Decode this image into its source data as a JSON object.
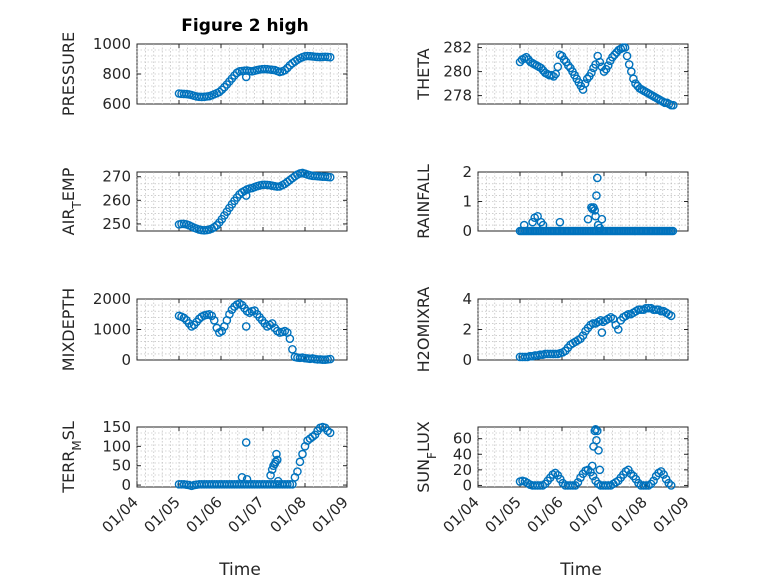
{
  "figure": {
    "title": "Figure 2 high",
    "marker_color": "#0072BD",
    "grid": "dotted",
    "x_tick_labels": [
      "01/04",
      "01/05",
      "01/06",
      "01/07",
      "01/08",
      "01/09"
    ],
    "x_label": "Time"
  },
  "chart_data": [
    {
      "type": "scatter",
      "ylabel": "PRESSURE",
      "ylim": [
        600,
        1000
      ],
      "yticks": [
        600,
        800,
        1000
      ],
      "x": [
        5.0,
        5.06,
        5.12,
        5.18,
        5.24,
        5.3,
        5.36,
        5.42,
        5.48,
        5.54,
        5.6,
        5.66,
        5.72,
        5.78,
        5.84,
        5.9,
        5.96,
        6.02,
        6.08,
        6.14,
        6.2,
        6.26,
        6.32,
        6.38,
        6.44,
        6.5,
        6.56,
        6.62,
        6.68,
        6.74,
        6.8,
        6.86,
        6.92,
        6.98,
        7.04,
        7.1,
        7.16,
        7.22,
        7.28,
        7.34,
        7.4,
        7.46,
        7.52,
        7.58,
        7.64,
        7.7,
        7.76,
        7.82,
        7.88,
        7.94,
        8.0,
        8.06,
        8.12,
        8.18,
        8.24,
        8.3,
        8.36,
        8.42,
        8.48,
        8.54,
        8.6,
        6.6
      ],
      "y": [
        670,
        668,
        667,
        666,
        664,
        660,
        655,
        650,
        648,
        647,
        648,
        650,
        652,
        658,
        665,
        672,
        680,
        695,
        712,
        730,
        750,
        770,
        790,
        808,
        818,
        820,
        822,
        823,
        820,
        818,
        822,
        826,
        830,
        832,
        833,
        832,
        830,
        828,
        826,
        820,
        814,
        818,
        825,
        840,
        858,
        872,
        884,
        895,
        905,
        912,
        918,
        920,
        919,
        917,
        915,
        914,
        913,
        914,
        915,
        914,
        912,
        780
      ]
    },
    {
      "type": "scatter",
      "ylabel": "THETA",
      "ylim": [
        277.3,
        282.3
      ],
      "yticks": [
        278,
        280,
        282
      ],
      "x": [
        5.0,
        5.05,
        5.1,
        5.15,
        5.2,
        5.25,
        5.3,
        5.35,
        5.4,
        5.45,
        5.5,
        5.55,
        5.6,
        5.65,
        5.7,
        5.75,
        5.8,
        5.85,
        5.9,
        5.95,
        6.0,
        6.05,
        6.1,
        6.15,
        6.2,
        6.25,
        6.3,
        6.35,
        6.4,
        6.45,
        6.5,
        6.55,
        6.6,
        6.65,
        6.7,
        6.75,
        6.8,
        6.85,
        6.9,
        6.95,
        7.0,
        7.05,
        7.1,
        7.15,
        7.2,
        7.25,
        7.3,
        7.35,
        7.4,
        7.45,
        7.5,
        7.55,
        7.6,
        7.65,
        7.7,
        7.75,
        7.8,
        7.85,
        7.9,
        7.95,
        8.0,
        8.05,
        8.1,
        8.15,
        8.2,
        8.25,
        8.3,
        8.35,
        8.4,
        8.45,
        8.5,
        8.55,
        8.6,
        8.65
      ],
      "y": [
        280.8,
        281.0,
        281.1,
        281.2,
        281.0,
        280.8,
        280.7,
        280.6,
        280.5,
        280.4,
        280.3,
        280.1,
        279.9,
        279.8,
        279.7,
        279.7,
        279.6,
        279.8,
        280.4,
        281.4,
        281.3,
        281.0,
        280.8,
        280.5,
        280.3,
        280.0,
        279.7,
        279.4,
        279.1,
        278.8,
        278.5,
        279.0,
        279.4,
        279.6,
        279.9,
        280.3,
        280.6,
        281.3,
        280.8,
        280.4,
        280.0,
        280.2,
        280.5,
        280.9,
        281.2,
        281.4,
        281.6,
        281.8,
        281.9,
        282.0,
        282.0,
        281.3,
        280.6,
        280.0,
        279.4,
        279.0,
        278.8,
        278.6,
        278.5,
        278.4,
        278.3,
        278.2,
        278.1,
        278.0,
        277.9,
        277.8,
        277.7,
        277.6,
        277.5,
        277.4,
        277.4,
        277.3,
        277.2,
        277.2
      ]
    },
    {
      "type": "scatter",
      "ylabel": "AIR_TEMP",
      "ylim": [
        247,
        272
      ],
      "yticks": [
        250,
        260,
        270
      ],
      "x": [
        5.0,
        5.06,
        5.12,
        5.18,
        5.24,
        5.3,
        5.36,
        5.42,
        5.48,
        5.54,
        5.6,
        5.66,
        5.72,
        5.78,
        5.84,
        5.9,
        5.96,
        6.02,
        6.08,
        6.14,
        6.2,
        6.26,
        6.32,
        6.38,
        6.44,
        6.5,
        6.56,
        6.62,
        6.68,
        6.74,
        6.8,
        6.86,
        6.92,
        6.98,
        7.04,
        7.1,
        7.16,
        7.22,
        7.28,
        7.34,
        7.4,
        7.46,
        7.52,
        7.58,
        7.64,
        7.7,
        7.76,
        7.82,
        7.88,
        7.94,
        8.0,
        8.06,
        8.12,
        8.18,
        8.24,
        8.3,
        8.36,
        8.42,
        8.48,
        8.54,
        8.6,
        6.6
      ],
      "y": [
        249.8,
        250.0,
        250.0,
        249.8,
        249.4,
        248.9,
        248.4,
        248.0,
        247.6,
        247.4,
        247.3,
        247.4,
        247.6,
        248.0,
        248.6,
        249.4,
        250.6,
        252.0,
        253.6,
        255.2,
        256.8,
        258.3,
        259.8,
        261.2,
        262.5,
        263.4,
        264.0,
        264.6,
        265.0,
        265.2,
        265.6,
        266.0,
        266.3,
        266.5,
        266.6,
        266.5,
        266.4,
        266.2,
        266.0,
        265.8,
        265.9,
        266.4,
        267.0,
        267.8,
        268.6,
        269.4,
        270.2,
        270.9,
        271.4,
        271.6,
        271.3,
        270.9,
        270.6,
        270.4,
        270.3,
        270.2,
        270.1,
        270.0,
        270.0,
        269.9,
        269.8,
        262.0
      ]
    },
    {
      "type": "scatter",
      "ylabel": "RAINFALL",
      "ylim": [
        0,
        2
      ],
      "yticks": [
        0,
        1,
        2
      ],
      "x": [
        5.0,
        5.04,
        5.08,
        5.12,
        5.16,
        5.2,
        5.24,
        5.28,
        5.32,
        5.36,
        5.4,
        5.44,
        5.48,
        5.52,
        5.56,
        5.6,
        5.64,
        5.68,
        5.72,
        5.76,
        5.8,
        5.84,
        5.88,
        5.92,
        5.96,
        6.0,
        6.04,
        6.08,
        6.12,
        6.16,
        6.2,
        6.24,
        6.28,
        6.32,
        6.36,
        6.4,
        6.44,
        6.48,
        6.52,
        6.56,
        6.6,
        6.64,
        6.68,
        6.72,
        6.76,
        6.8,
        6.84,
        6.88,
        6.92,
        6.96,
        7.0,
        7.04,
        7.08,
        7.12,
        7.16,
        7.2,
        7.24,
        7.28,
        7.32,
        7.36,
        7.4,
        7.44,
        7.48,
        7.52,
        7.56,
        7.6,
        7.64,
        7.68,
        7.72,
        7.76,
        7.8,
        7.84,
        7.88,
        7.92,
        7.96,
        8.0,
        8.04,
        8.08,
        8.12,
        8.16,
        8.2,
        8.24,
        8.28,
        8.32,
        8.36,
        8.4,
        8.44,
        8.48,
        8.52,
        8.56,
        8.6,
        8.64,
        5.1,
        5.3,
        5.35,
        5.42,
        5.5,
        5.55,
        5.95,
        6.62,
        6.7,
        6.72,
        6.75,
        6.78,
        6.8,
        6.82,
        6.84,
        6.86,
        6.9,
        6.95
      ],
      "y": [
        0,
        0,
        0,
        0,
        0,
        0,
        0,
        0,
        0,
        0,
        0,
        0,
        0,
        0,
        0,
        0,
        0,
        0,
        0,
        0,
        0,
        0,
        0,
        0,
        0,
        0,
        0,
        0,
        0,
        0,
        0,
        0,
        0,
        0,
        0,
        0,
        0,
        0,
        0,
        0,
        0,
        0,
        0,
        0,
        0,
        0,
        0,
        0,
        0,
        0,
        0,
        0,
        0,
        0,
        0,
        0,
        0,
        0,
        0,
        0,
        0,
        0,
        0,
        0,
        0,
        0,
        0,
        0,
        0,
        0,
        0,
        0,
        0,
        0,
        0,
        0,
        0,
        0,
        0,
        0,
        0,
        0,
        0,
        0,
        0,
        0,
        0,
        0,
        0,
        0,
        0,
        0,
        0.2,
        0.3,
        0.45,
        0.5,
        0.3,
        0.2,
        0.3,
        0.4,
        0.8,
        0.75,
        0.8,
        0.7,
        0.5,
        1.2,
        1.8,
        0.2,
        0.1,
        0.4
      ]
    },
    {
      "type": "scatter",
      "ylabel": "MIXDEPTH",
      "ylim": [
        0,
        2000
      ],
      "yticks": [
        0,
        1000,
        2000
      ],
      "x": [
        5.0,
        5.06,
        5.12,
        5.18,
        5.24,
        5.3,
        5.36,
        5.42,
        5.48,
        5.54,
        5.6,
        5.66,
        5.72,
        5.78,
        5.84,
        5.9,
        5.96,
        6.02,
        6.08,
        6.14,
        6.2,
        6.26,
        6.32,
        6.38,
        6.44,
        6.5,
        6.56,
        6.62,
        6.68,
        6.74,
        6.8,
        6.86,
        6.92,
        6.98,
        7.04,
        7.1,
        7.16,
        7.22,
        7.28,
        7.34,
        7.4,
        7.46,
        7.52,
        7.58,
        7.64,
        7.7,
        7.76,
        7.82,
        7.88,
        7.94,
        8.0,
        8.06,
        8.12,
        8.18,
        8.24,
        8.3,
        8.36,
        8.42,
        8.48,
        8.54,
        8.6,
        6.6
      ],
      "y": [
        1450,
        1420,
        1380,
        1300,
        1200,
        1100,
        1150,
        1250,
        1350,
        1420,
        1460,
        1480,
        1500,
        1450,
        1300,
        1050,
        900,
        950,
        1100,
        1300,
        1500,
        1650,
        1750,
        1820,
        1850,
        1800,
        1700,
        1600,
        1550,
        1600,
        1620,
        1500,
        1400,
        1300,
        1200,
        1100,
        1150,
        1200,
        1050,
        950,
        900,
        920,
        950,
        900,
        700,
        350,
        100,
        80,
        70,
        80,
        60,
        50,
        40,
        50,
        30,
        20,
        20,
        10,
        10,
        20,
        30,
        1100
      ]
    },
    {
      "type": "scatter",
      "ylabel": "H2OMIXRA",
      "ylim": [
        0,
        4
      ],
      "yticks": [
        0,
        2,
        4
      ],
      "x": [
        5.0,
        5.06,
        5.12,
        5.18,
        5.24,
        5.3,
        5.36,
        5.42,
        5.48,
        5.54,
        5.6,
        5.66,
        5.72,
        5.78,
        5.84,
        5.9,
        5.96,
        6.02,
        6.08,
        6.14,
        6.2,
        6.26,
        6.32,
        6.38,
        6.44,
        6.5,
        6.56,
        6.62,
        6.68,
        6.74,
        6.8,
        6.86,
        6.92,
        6.98,
        7.04,
        7.1,
        7.16,
        7.22,
        7.28,
        7.34,
        7.4,
        7.46,
        7.52,
        7.58,
        7.64,
        7.7,
        7.76,
        7.82,
        7.88,
        7.94,
        8.0,
        8.06,
        8.12,
        8.18,
        8.24,
        8.3,
        8.36,
        8.42,
        8.48,
        8.54,
        8.6,
        6.95
      ],
      "y": [
        0.2,
        0.2,
        0.2,
        0.2,
        0.25,
        0.25,
        0.3,
        0.3,
        0.35,
        0.35,
        0.4,
        0.4,
        0.4,
        0.4,
        0.4,
        0.4,
        0.45,
        0.5,
        0.6,
        0.8,
        1.0,
        1.1,
        1.2,
        1.3,
        1.4,
        1.6,
        1.9,
        2.1,
        2.3,
        2.4,
        2.4,
        2.5,
        2.6,
        2.5,
        2.6,
        2.7,
        2.8,
        2.7,
        2.3,
        2.0,
        2.6,
        2.8,
        2.9,
        3.0,
        3.0,
        3.1,
        3.2,
        3.3,
        3.3,
        3.3,
        3.4,
        3.4,
        3.4,
        3.3,
        3.3,
        3.3,
        3.2,
        3.2,
        3.1,
        3.0,
        2.9,
        1.8
      ]
    },
    {
      "type": "scatter",
      "ylabel": "TERR_MSL",
      "ylim": [
        -5,
        150
      ],
      "yticks": [
        0,
        50,
        100,
        150
      ],
      "x": [
        5.0,
        5.06,
        5.12,
        5.18,
        5.24,
        5.3,
        5.36,
        5.42,
        5.48,
        5.54,
        5.6,
        5.66,
        5.72,
        5.78,
        5.84,
        5.9,
        5.96,
        6.02,
        6.08,
        6.14,
        6.2,
        6.26,
        6.32,
        6.38,
        6.44,
        6.5,
        6.56,
        6.62,
        6.68,
        6.74,
        6.8,
        6.86,
        6.92,
        6.98,
        7.04,
        7.1,
        7.16,
        7.22,
        7.28,
        7.34,
        7.4,
        7.46,
        7.52,
        7.58,
        7.64,
        7.7,
        7.76,
        7.82,
        7.88,
        7.94,
        8.0,
        8.06,
        8.12,
        8.18,
        8.24,
        8.3,
        8.36,
        8.42,
        8.48,
        8.54,
        8.6,
        6.6,
        6.5,
        6.62,
        7.18,
        7.22,
        7.25,
        7.28,
        7.3,
        7.32,
        7.34,
        7.36
      ],
      "y": [
        2,
        2,
        2,
        1,
        0,
        -2,
        0,
        1,
        2,
        2,
        2,
        2,
        2,
        2,
        2,
        2,
        2,
        2,
        2,
        2,
        2,
        2,
        2,
        2,
        2,
        2,
        2,
        2,
        2,
        2,
        2,
        2,
        2,
        2,
        2,
        2,
        2,
        2,
        2,
        2,
        2,
        2,
        2,
        2,
        2,
        2,
        20,
        35,
        60,
        80,
        100,
        115,
        120,
        125,
        130,
        140,
        148,
        150,
        148,
        140,
        135,
        110,
        20,
        15,
        25,
        40,
        50,
        55,
        60,
        80,
        65,
        10
      ]
    },
    {
      "type": "scatter",
      "ylabel": "SUN_FLUX",
      "ylim": [
        -2,
        75
      ],
      "yticks": [
        0,
        20,
        40,
        60
      ],
      "x": [
        5.0,
        5.06,
        5.12,
        5.18,
        5.24,
        5.3,
        5.36,
        5.42,
        5.48,
        5.54,
        5.6,
        5.66,
        5.72,
        5.78,
        5.84,
        5.9,
        5.96,
        6.02,
        6.08,
        6.14,
        6.2,
        6.26,
        6.32,
        6.38,
        6.44,
        6.5,
        6.56,
        6.62,
        6.68,
        6.74,
        6.8,
        6.86,
        6.92,
        6.98,
        7.04,
        7.1,
        7.16,
        7.22,
        7.28,
        7.34,
        7.4,
        7.46,
        7.52,
        7.58,
        7.64,
        7.7,
        7.76,
        7.82,
        7.88,
        7.94,
        8.0,
        8.06,
        8.12,
        8.18,
        8.24,
        8.3,
        8.36,
        8.42,
        8.48,
        8.54,
        8.6,
        6.72,
        6.75,
        6.78,
        6.8,
        6.82,
        6.84,
        6.87,
        6.9
      ],
      "y": [
        5,
        6,
        5,
        3,
        1,
        0,
        0,
        0,
        0,
        0,
        2,
        6,
        10,
        14,
        16,
        13,
        8,
        3,
        0,
        0,
        0,
        0,
        0,
        4,
        10,
        15,
        19,
        20,
        17,
        12,
        6,
        2,
        0,
        0,
        0,
        0,
        0,
        2,
        4,
        6,
        10,
        14,
        18,
        20,
        15,
        12,
        8,
        3,
        0,
        0,
        0,
        0,
        2,
        6,
        12,
        16,
        18,
        14,
        8,
        3,
        0,
        25,
        50,
        70,
        72,
        58,
        70,
        45,
        20
      ]
    }
  ]
}
